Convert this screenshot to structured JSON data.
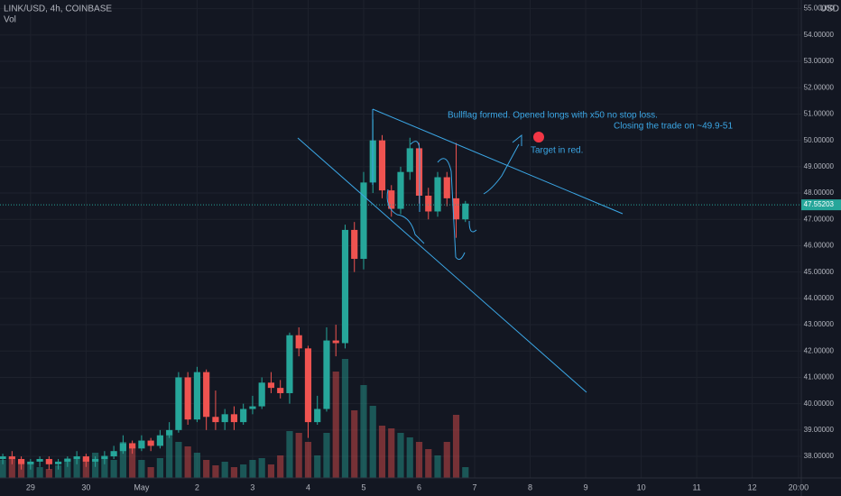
{
  "chart_data": {
    "type": "candlestick",
    "title": "LINK/USD, 4h, COINBASE",
    "subtitle": "Vol",
    "currency": "USD",
    "x": [
      0,
      1,
      2,
      3,
      4,
      5,
      6,
      7,
      8,
      9,
      10,
      11,
      12,
      13,
      14,
      15,
      16,
      17,
      18,
      19,
      20,
      21,
      22,
      23,
      24,
      25,
      26,
      27,
      28,
      29,
      30,
      31,
      32,
      33,
      34,
      35,
      36,
      37,
      38,
      39,
      40,
      41,
      42,
      43,
      44,
      45,
      46,
      47,
      48,
      49,
      50
    ],
    "open": [
      37.9,
      38.0,
      37.9,
      37.7,
      37.8,
      37.9,
      37.7,
      37.8,
      37.9,
      38.0,
      37.8,
      37.9,
      38.0,
      38.2,
      38.5,
      38.3,
      38.6,
      38.4,
      38.8,
      39.0,
      41.0,
      39.4,
      41.2,
      39.5,
      39.3,
      39.6,
      39.3,
      39.8,
      39.9,
      40.8,
      40.6,
      40.4,
      42.6,
      42.1,
      39.3,
      39.8,
      42.4,
      42.3,
      46.6,
      45.5,
      48.4,
      50.0,
      48.1,
      47.4,
      48.8,
      49.7,
      47.9,
      47.3,
      48.6,
      47.8,
      47.0
    ],
    "high": [
      38.1,
      38.2,
      38.0,
      37.9,
      38.0,
      38.0,
      37.9,
      38.0,
      38.2,
      38.1,
      38.0,
      38.2,
      38.4,
      38.8,
      38.6,
      38.8,
      38.7,
      39.0,
      39.3,
      41.2,
      41.2,
      41.4,
      41.3,
      40.5,
      39.8,
      39.9,
      40.0,
      40.3,
      41.0,
      41.2,
      40.9,
      42.7,
      42.9,
      42.2,
      40.3,
      42.9,
      43.0,
      46.8,
      46.9,
      48.8,
      50.8,
      50.2,
      48.3,
      49.0,
      50.1,
      49.9,
      48.2,
      48.8,
      48.8,
      49.9,
      47.7
    ],
    "low": [
      37.7,
      37.7,
      37.5,
      37.5,
      37.6,
      37.5,
      37.5,
      37.6,
      37.7,
      37.6,
      37.6,
      37.7,
      37.9,
      38.1,
      38.1,
      38.2,
      38.2,
      38.3,
      38.7,
      38.9,
      39.2,
      39.3,
      39.0,
      39.0,
      39.0,
      39.0,
      39.2,
      39.6,
      39.8,
      40.4,
      40.2,
      40.0,
      41.8,
      38.7,
      39.2,
      39.7,
      41.8,
      42.1,
      45.0,
      45.1,
      48.0,
      47.8,
      47.1,
      47.2,
      48.5,
      47.6,
      47.0,
      47.1,
      47.5,
      46.3,
      46.9
    ],
    "close": [
      38.0,
      37.9,
      37.7,
      37.8,
      37.9,
      37.7,
      37.8,
      37.9,
      38.0,
      37.8,
      37.9,
      38.0,
      38.2,
      38.5,
      38.3,
      38.6,
      38.4,
      38.8,
      39.0,
      41.0,
      39.4,
      41.2,
      39.5,
      39.3,
      39.6,
      39.3,
      39.8,
      39.9,
      40.8,
      40.6,
      40.4,
      42.6,
      42.1,
      39.3,
      39.8,
      42.4,
      42.3,
      46.6,
      45.5,
      48.4,
      50.0,
      48.1,
      47.4,
      48.8,
      49.7,
      47.9,
      47.3,
      48.6,
      47.8,
      47.0,
      47.6
    ],
    "volume": [
      20,
      22,
      15,
      18,
      12,
      10,
      14,
      22,
      24,
      22,
      28,
      25,
      20,
      40,
      35,
      20,
      12,
      22,
      48,
      40,
      35,
      28,
      20,
      14,
      18,
      12,
      15,
      20,
      22,
      15,
      25,
      52,
      50,
      40,
      25,
      50,
      118,
      132,
      75,
      103,
      80,
      58,
      55,
      50,
      45,
      40,
      32,
      25,
      40,
      70,
      12
    ],
    "up_color": "#26a69a",
    "down_color": "#ef5350",
    "ylim": [
      37.18,
      55.33
    ],
    "yticks": [
      {
        "value": 38,
        "label": "38.00000"
      },
      {
        "value": 39,
        "label": "39.00000"
      },
      {
        "value": 40,
        "label": "40.00000"
      },
      {
        "value": 41,
        "label": "41.00000"
      },
      {
        "value": 42,
        "label": "42.00000"
      },
      {
        "value": 43,
        "label": "43.00000"
      },
      {
        "value": 44,
        "label": "44.00000"
      },
      {
        "value": 45,
        "label": "45.00000"
      },
      {
        "value": 46,
        "label": "46.00000"
      },
      {
        "value": 47,
        "label": "47.00000"
      },
      {
        "value": 48,
        "label": "48.00000"
      },
      {
        "value": 49,
        "label": "49.00000"
      },
      {
        "value": 50,
        "label": "50.00000"
      },
      {
        "value": 51,
        "label": "51.00000"
      },
      {
        "value": 52,
        "label": "52.00000"
      },
      {
        "value": 53,
        "label": "53.00000"
      },
      {
        "value": 54,
        "label": "54.00000"
      },
      {
        "value": 55,
        "label": "55.00000"
      }
    ],
    "xlim": [
      -0.3,
      86.3
    ],
    "xticks": [
      {
        "value": 3,
        "label": "29"
      },
      {
        "value": 9,
        "label": "30"
      },
      {
        "value": 15,
        "label": "May"
      },
      {
        "value": 21,
        "label": "2"
      },
      {
        "value": 27,
        "label": "3"
      },
      {
        "value": 33,
        "label": "4"
      },
      {
        "value": 39,
        "label": "5"
      },
      {
        "value": 45,
        "label": "6"
      },
      {
        "value": 51,
        "label": "7"
      },
      {
        "value": 57,
        "label": "8"
      },
      {
        "value": 63,
        "label": "9"
      },
      {
        "value": 69,
        "label": "10"
      },
      {
        "value": 75,
        "label": "11"
      },
      {
        "value": 81,
        "label": "12"
      },
      {
        "value": 86,
        "label": "20:00"
      }
    ],
    "last_price": {
      "value": 47.55203,
      "label": "47.55203"
    },
    "grid": true,
    "annotations": [
      "Bullflag formed. Opened longs with x50 no stop loss.",
      "Closing the trade on ~49.9-51",
      "Target in red."
    ]
  }
}
